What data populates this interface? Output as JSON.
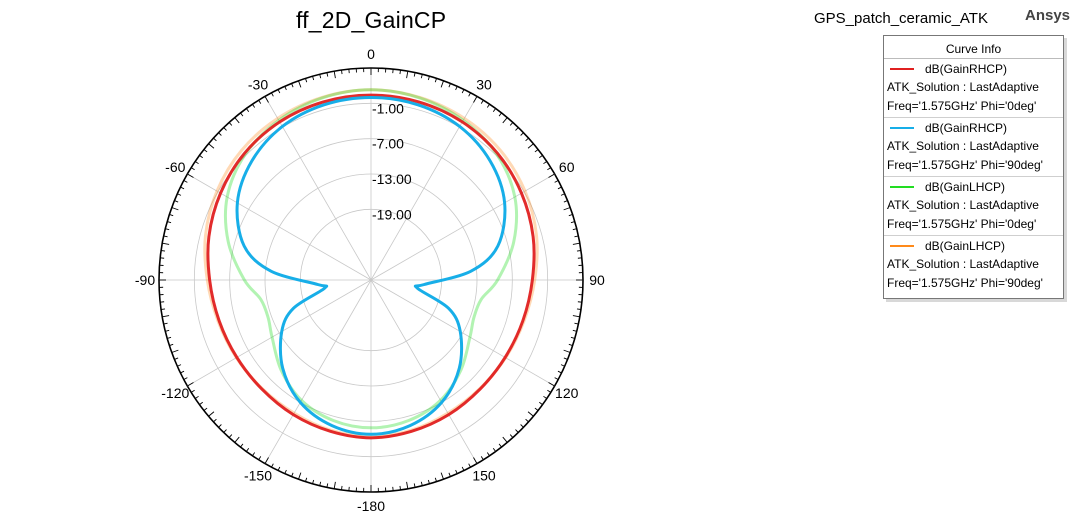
{
  "header": {
    "title": "ff_2D_GainCP",
    "project": "GPS_patch_ceramic_ATK",
    "brand": "Ansys"
  },
  "legend": {
    "title": "Curve Info",
    "entries": [
      {
        "name": "dB(GainRHCP)",
        "solution": "ATK_Solution : LastAdaptive",
        "condition": "Freq='1.575GHz' Phi='0deg'",
        "color": "#e02020"
      },
      {
        "name": "dB(GainRHCP)",
        "solution": "ATK_Solution : LastAdaptive",
        "condition": "Freq='1.575GHz' Phi='90deg'",
        "color": "#17aee8"
      },
      {
        "name": "dB(GainLHCP)",
        "solution": "ATK_Solution : LastAdaptive",
        "condition": "Freq='1.575GHz' Phi='0deg'",
        "color": "#22dd22"
      },
      {
        "name": "dB(GainLHCP)",
        "solution": "ATK_Solution : LastAdaptive",
        "condition": "Freq='1.575GHz' Phi='90deg'",
        "color": "#ff8a1a"
      }
    ]
  },
  "chart_data": {
    "type": "polar",
    "title": "ff_2D_GainCP",
    "angle_unit": "deg",
    "angle_zero": "top",
    "angle_direction": "clockwise",
    "angle_ticks": [
      0,
      30,
      60,
      90,
      120,
      150,
      -180,
      -150,
      -120,
      -90,
      -60,
      -30
    ],
    "radial_range": [
      -31,
      5
    ],
    "radial_ticks": [
      -1.0,
      -7.0,
      -13.0,
      -19.0
    ],
    "radial_tick_labels": [
      "-1.00",
      "-7.00",
      "-13.00",
      "-19.00"
    ],
    "grid": true,
    "legend_position": "top-right",
    "series": [
      {
        "name": "dB(GainRHCP) Freq='1.575GHz' Phi='0deg'",
        "color": "#e02020",
        "theta": [
          0,
          15,
          30,
          45,
          60,
          75,
          90,
          105,
          120,
          135,
          150,
          165,
          180,
          -165,
          -150,
          -135,
          -120,
          -105,
          -90,
          -75,
          -60,
          -45,
          -30,
          -15
        ],
        "values": [
          0.4,
          0.3,
          0.0,
          -0.6,
          -1.5,
          -2.5,
          -3.6,
          -4.3,
          -4.7,
          -4.8,
          -4.6,
          -4.4,
          -4.2,
          -4.4,
          -4.6,
          -4.8,
          -4.7,
          -4.3,
          -3.6,
          -2.5,
          -1.5,
          -0.6,
          0.0,
          0.3
        ]
      },
      {
        "name": "dB(GainRHCP) Freq='1.575GHz' Phi='90deg'",
        "color": "#17aee8",
        "theta": [
          0,
          15,
          30,
          45,
          60,
          75,
          85,
          95,
          100,
          110,
          120,
          135,
          150,
          165,
          180,
          -165,
          -150,
          -135,
          -120,
          -110,
          -100,
          -95,
          -85,
          -75,
          -60,
          -45,
          -30,
          -15
        ],
        "values": [
          0.0,
          -0.2,
          -0.9,
          -2.4,
          -4.8,
          -8.7,
          -14.0,
          -22.0,
          -23.0,
          -17.0,
          -13.5,
          -9.8,
          -7.0,
          -5.4,
          -4.8,
          -5.4,
          -7.0,
          -9.8,
          -13.5,
          -17.0,
          -23.0,
          -22.0,
          -14.0,
          -8.7,
          -4.8,
          -2.4,
          -0.9,
          -0.2
        ]
      },
      {
        "name": "dB(GainLHCP) Freq='1.575GHz' Phi='0deg'",
        "color": "#22dd22",
        "theta": [
          0,
          15,
          30,
          45,
          60,
          75,
          90,
          100,
          110,
          120,
          135,
          150,
          165,
          180,
          -165,
          -150,
          -135,
          -120,
          -110,
          -100,
          -90,
          -75,
          -60,
          -45,
          -30,
          -15
        ],
        "values": [
          1.3,
          1.0,
          0.3,
          -0.8,
          -2.8,
          -5.9,
          -9.5,
          -12.0,
          -12.4,
          -11.6,
          -9.4,
          -7.4,
          -6.3,
          -5.9,
          -6.3,
          -7.4,
          -9.4,
          -11.6,
          -12.4,
          -12.0,
          -9.5,
          -5.9,
          -2.8,
          -0.8,
          0.3,
          1.0
        ]
      },
      {
        "name": "dB(GainLHCP) Freq='1.575GHz' Phi='90deg'",
        "color": "#ff8a1a",
        "theta": [
          0,
          15,
          30,
          45,
          60,
          75,
          90,
          105,
          120,
          135,
          150,
          165,
          180,
          -165,
          -150,
          -135,
          -120,
          -105,
          -90,
          -75,
          -60,
          -45,
          -30,
          -15
        ],
        "values": [
          1.3,
          1.1,
          0.7,
          0.1,
          -0.8,
          -1.9,
          -3.2,
          -4.1,
          -4.6,
          -4.9,
          -4.9,
          -4.6,
          -4.4,
          -4.6,
          -4.9,
          -4.9,
          -4.6,
          -4.1,
          -3.2,
          -1.9,
          -0.8,
          0.1,
          0.7,
          1.1
        ]
      }
    ]
  }
}
